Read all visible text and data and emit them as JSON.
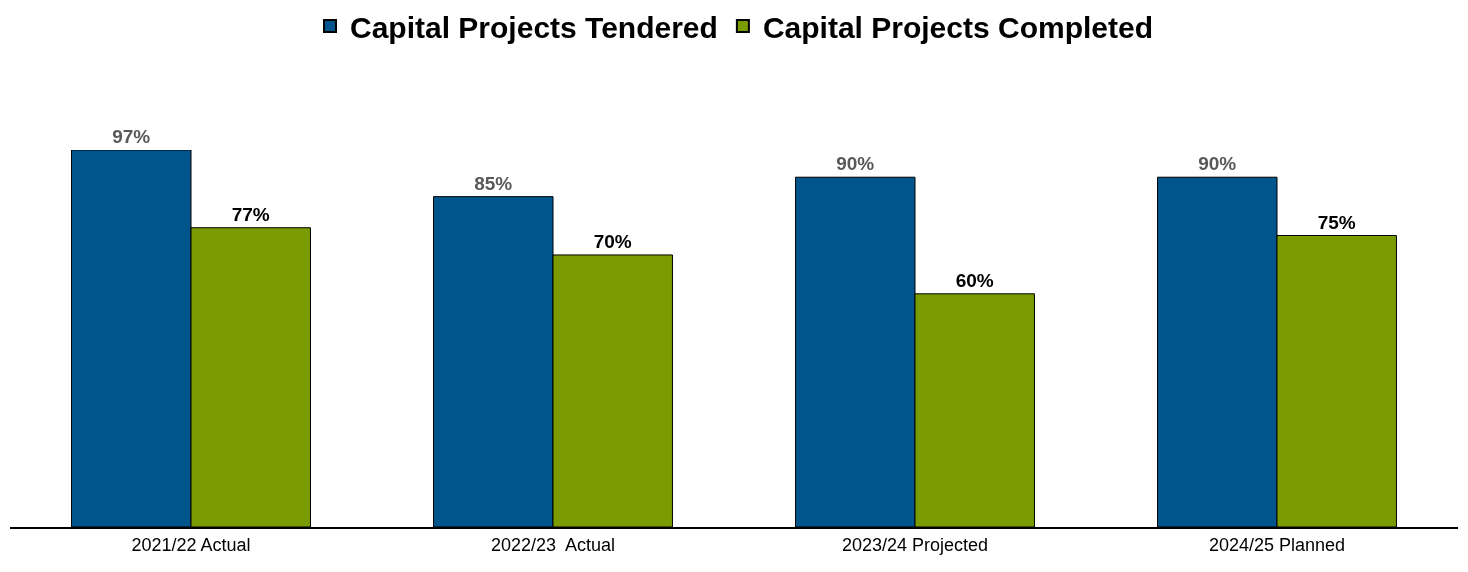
{
  "chart_data": {
    "type": "bar",
    "categories": [
      "2021/22 Actual",
      "2022/23  Actual",
      "2023/24 Projected",
      "2024/25 Planned"
    ],
    "series": [
      {
        "name": "Capital Projects Tendered",
        "color": "#00558c",
        "values": [
          97,
          85,
          90,
          90
        ],
        "value_labels": [
          "97%",
          "85%",
          "90%",
          "90%"
        ]
      },
      {
        "name": "Capital Projects Completed",
        "color": "#7a9c00",
        "values": [
          77,
          70,
          60,
          75
        ],
        "value_labels": [
          "77%",
          "70%",
          "60%",
          "75%"
        ]
      }
    ],
    "legend": "top"
  }
}
